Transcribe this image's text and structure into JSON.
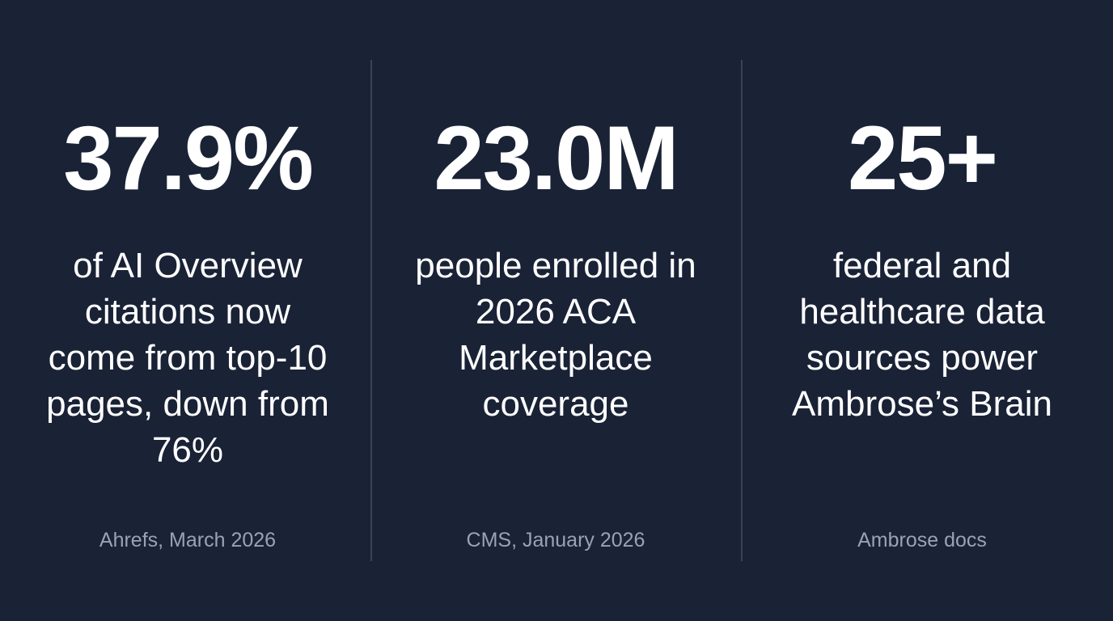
{
  "stats": [
    {
      "value": "37.9%",
      "description": "of AI Overview citations now come from top-10 pages, down from 76%",
      "source": "Ahrefs, March 2026"
    },
    {
      "value": "23.0M",
      "description": "people enrolled in 2026 ACA Marketplace coverage",
      "source": "CMS, January 2026"
    },
    {
      "value": "25+",
      "description": "federal and healthcare data sources power Ambrose’s Brain",
      "source": "Ambrose docs"
    }
  ],
  "colors": {
    "background": "#1a2236",
    "value_text": "#ffffff",
    "source_text": "#9aa3b5",
    "divider": "#3a4356"
  }
}
